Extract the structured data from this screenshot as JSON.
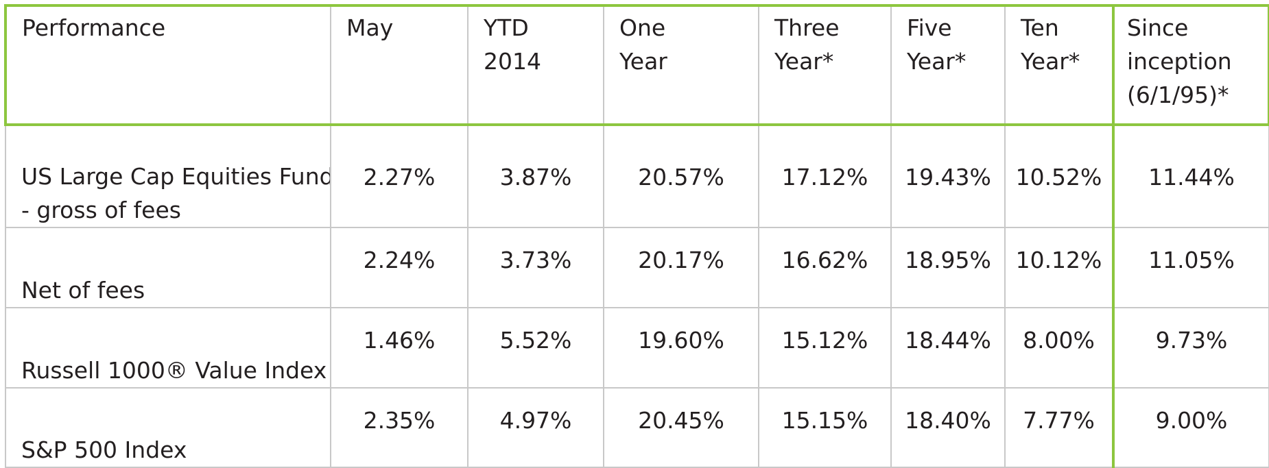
{
  "table": {
    "headers": [
      [
        "Performance"
      ],
      [
        "May"
      ],
      [
        "YTD",
        "2014"
      ],
      [
        "One",
        "Year"
      ],
      [
        "Three",
        "Year*"
      ],
      [
        "Five",
        "Year*"
      ],
      [
        "Ten",
        "Year*"
      ],
      [
        "Since",
        "inception",
        "(6/1/95)*"
      ]
    ],
    "rows": [
      {
        "label": [
          "US Large Cap Equities Fund",
          "- gross of fees"
        ],
        "values": [
          "2.27%",
          "3.87%",
          "20.57%",
          "17.12%",
          "19.43%",
          "10.52%",
          "11.44%"
        ]
      },
      {
        "label": [
          "Net of fees"
        ],
        "values": [
          "2.24%",
          "3.73%",
          "20.17%",
          "16.62%",
          "18.95%",
          "10.12%",
          "11.05%"
        ]
      },
      {
        "label": [
          "Russell 1000® Value Index"
        ],
        "values": [
          "1.46%",
          "5.52%",
          "19.60%",
          "15.12%",
          "18.44%",
          "8.00%",
          "9.73%"
        ]
      },
      {
        "label": [
          "S&P 500 Index"
        ],
        "values": [
          "2.35%",
          "4.97%",
          "20.45%",
          "15.15%",
          "18.40%",
          "7.77%",
          "9.00%"
        ]
      }
    ],
    "accent_color": "#8dc63f",
    "grid_color": "#c8c8c8"
  }
}
